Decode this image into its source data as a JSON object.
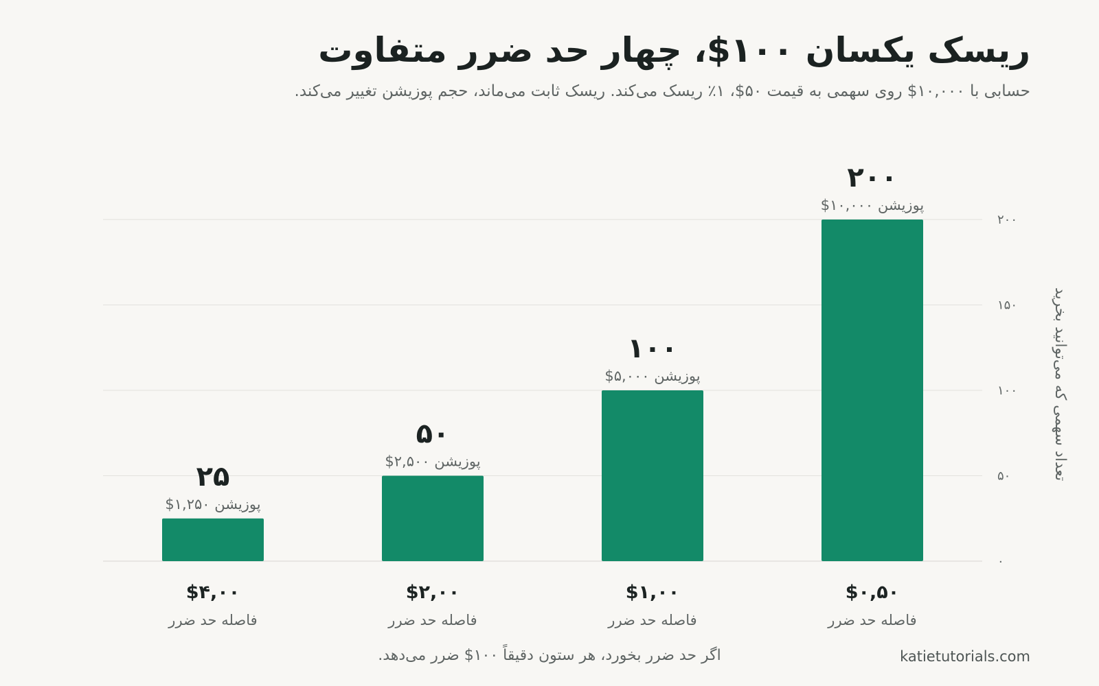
{
  "header": {
    "title": "ریسک یکسان ۱۰۰$، چهار حد ضرر متفاوت",
    "subtitle": "حسابی با ۱۰,۰۰۰$ روی سهمی به قیمت ۵۰$، ۱٪ ریسک می‌کند. ریسک ثابت می‌ماند، حجم پوزیشن تغییر می‌کند."
  },
  "footer": {
    "note": "اگر حد ضرر بخورد، هر ستون دقیقاً ۱۰۰$ ضرر می‌دهد.",
    "source": "katietutorials.com"
  },
  "colors": {
    "bar": "#138a68",
    "grid": "#e2e1dd",
    "text": "#1c2322",
    "muted": "#5f6564"
  },
  "chart_data": {
    "type": "bar",
    "title": "ریسک یکسان ۱۰۰$، چهار حد ضرر متفاوت",
    "ylabel": "تعداد سهمی که می‌توانید بخرید",
    "ylim": [
      0,
      200
    ],
    "yticks": [
      0,
      50,
      100,
      150,
      200
    ],
    "ytick_labels": [
      "۰",
      "۵۰",
      "۱۰۰",
      "۱۵۰",
      "۲۰۰"
    ],
    "y_axis_side": "right",
    "grid": true,
    "category_sublabel": "فاصله حد ضرر",
    "bars": [
      {
        "stop": "$۴,۰۰",
        "stop_value": 4.0,
        "shares": 25,
        "shares_label": "۲۵",
        "position_label": "پوزیشن ۱,۲۵۰$"
      },
      {
        "stop": "$۲,۰۰",
        "stop_value": 2.0,
        "shares": 50,
        "shares_label": "۵۰",
        "position_label": "پوزیشن ۲,۵۰۰$"
      },
      {
        "stop": "$۱,۰۰",
        "stop_value": 1.0,
        "shares": 100,
        "shares_label": "۱۰۰",
        "position_label": "پوزیشن ۵,۰۰۰$"
      },
      {
        "stop": "$۰,۵۰",
        "stop_value": 0.5,
        "shares": 200,
        "shares_label": "۲۰۰",
        "position_label": "پوزیشن ۱۰,۰۰۰$"
      }
    ]
  }
}
